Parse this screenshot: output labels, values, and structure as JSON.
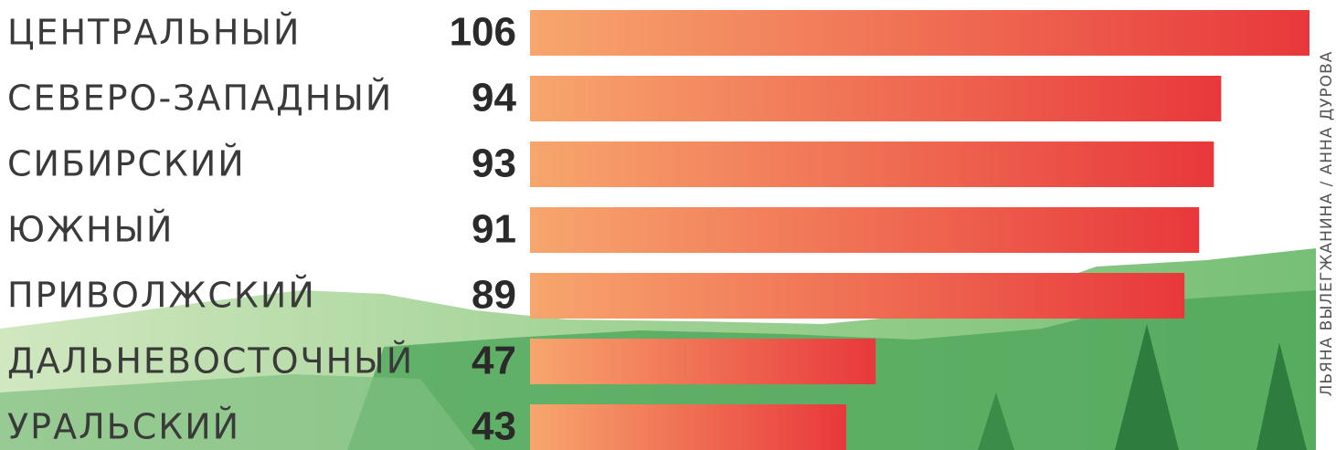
{
  "chart_data": {
    "type": "bar",
    "orientation": "horizontal",
    "categories": [
      "ЦЕНТРАЛЬНЫЙ",
      "СЕВЕРО-ЗАПАДНЫЙ",
      "СИБИРСКИЙ",
      "ЮЖНЫЙ",
      "ПРИВОЛЖСКИЙ",
      "ДАЛЬНЕВОСТОЧНЫЙ",
      "УРАЛЬСКИЙ"
    ],
    "values": [
      106,
      94,
      93,
      91,
      89,
      47,
      43
    ],
    "gradient": [
      "#f7a66d",
      "#e8383b"
    ]
  },
  "credit": "ЛЬЯНА ВЫЛЕГЖАНИНА / АННА ДУРОВА"
}
